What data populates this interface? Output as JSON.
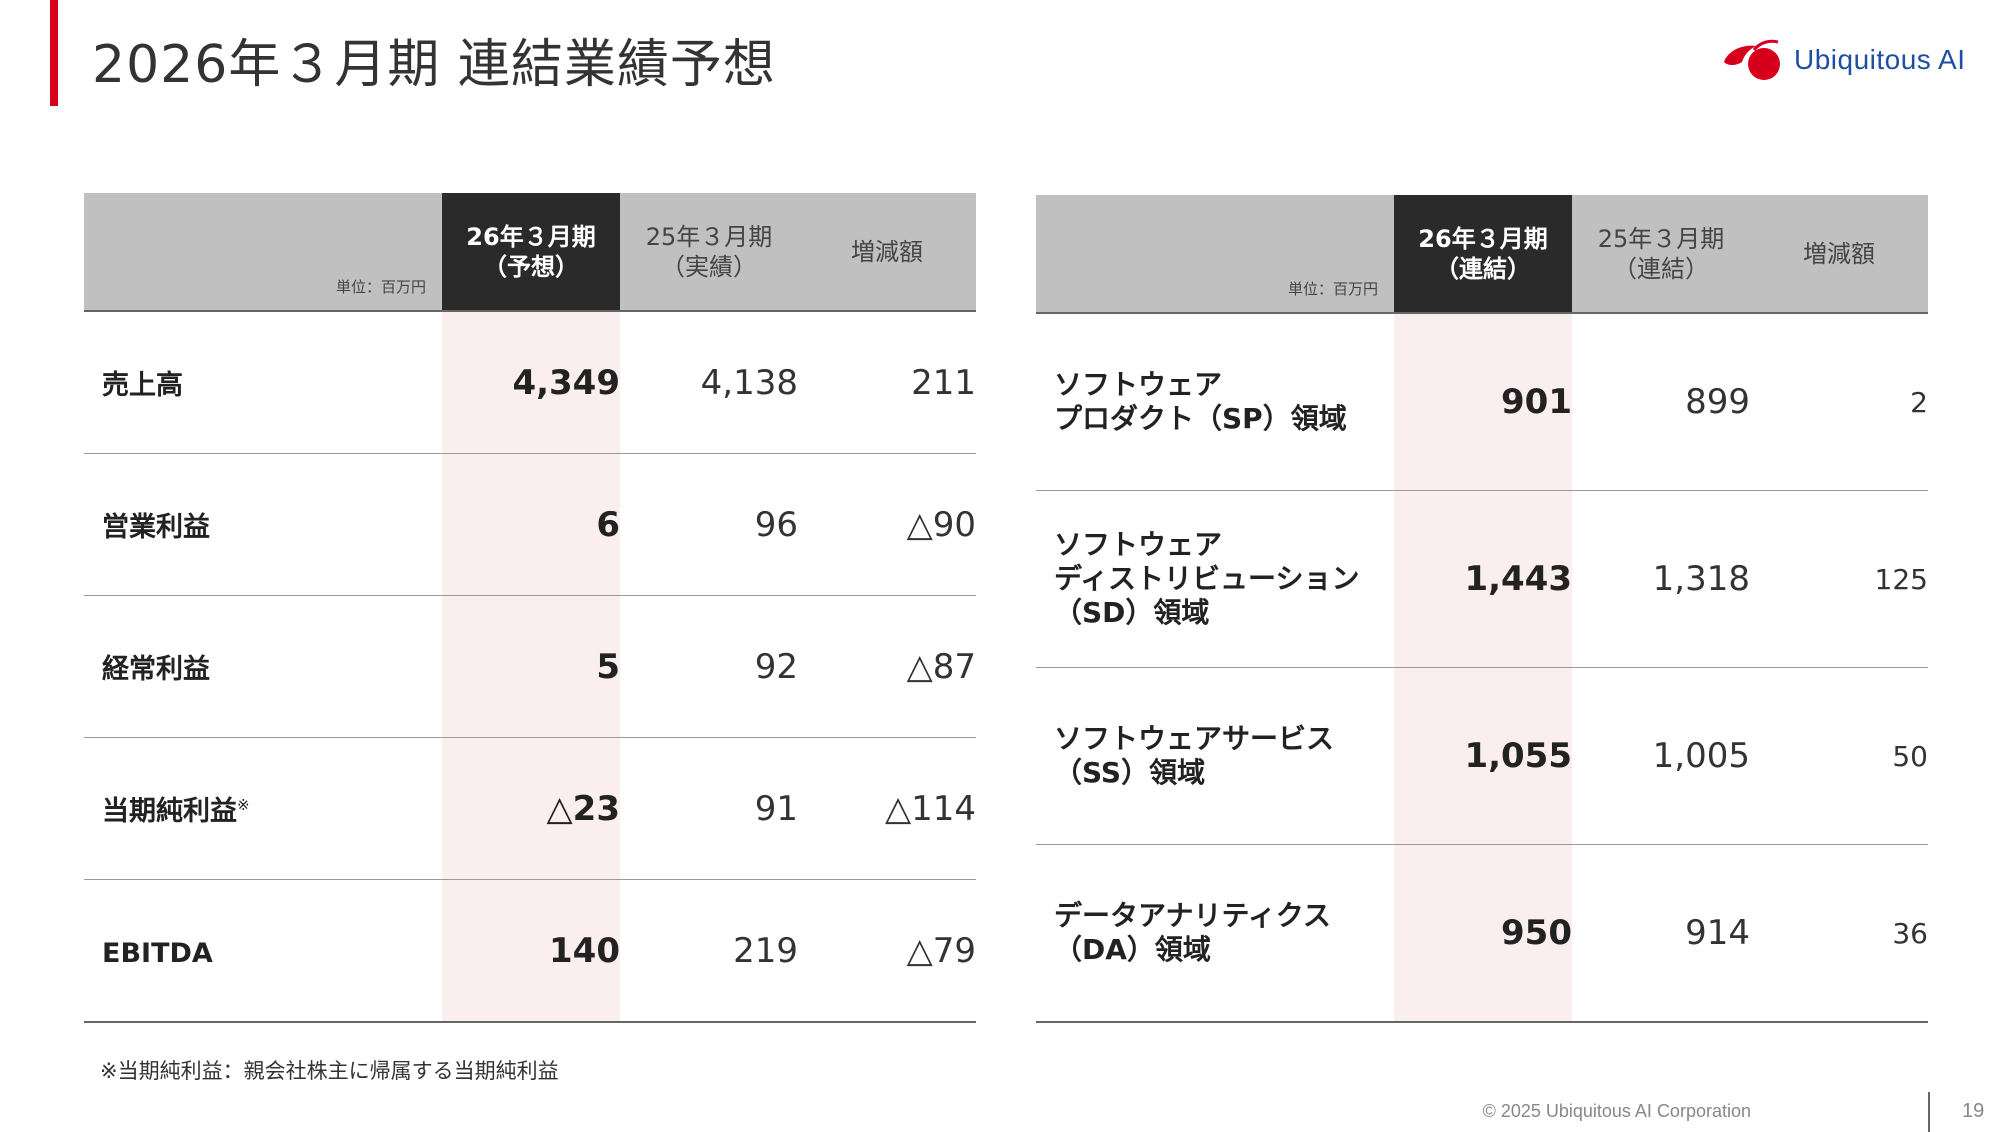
{
  "title": "2026年３月期 連結業績予想",
  "logo": {
    "text": "Ubiquitous AI"
  },
  "left_table": {
    "unit": "単位：百万円",
    "columns": [
      {
        "line1": "26年３月期",
        "line2": "（予想）"
      },
      {
        "line1": "25年３月期",
        "line2": "（実績）"
      },
      {
        "line1": "増減額",
        "line2": ""
      }
    ],
    "rows": [
      {
        "name": "売上高",
        "mark": "",
        "forecast": "4,349",
        "actual": "4,138",
        "change": "211"
      },
      {
        "name": "営業利益",
        "mark": "",
        "forecast": "6",
        "actual": "96",
        "change": "△90"
      },
      {
        "name": "経常利益",
        "mark": "",
        "forecast": "5",
        "actual": "92",
        "change": "△87"
      },
      {
        "name": "当期純利益",
        "mark": "※",
        "forecast": "△23",
        "actual": "91",
        "change": "△114"
      },
      {
        "name": "EBITDA",
        "mark": "",
        "forecast": "140",
        "actual": "219",
        "change": "△79"
      }
    ]
  },
  "right_table": {
    "unit": "単位：百万円",
    "columns": [
      {
        "line1": "26年３月期",
        "line2": "（連結）"
      },
      {
        "line1": "25年３月期",
        "line2": "（連結）"
      },
      {
        "line1": "増減額",
        "line2": ""
      }
    ],
    "rows": [
      {
        "name_lines": [
          "ソフトウェア",
          "プロダクト（SP）領域"
        ],
        "forecast": "901",
        "actual": "899",
        "change": "2"
      },
      {
        "name_lines": [
          "ソフトウェア",
          "ディストリビューション",
          "（SD）領域"
        ],
        "forecast": "1,443",
        "actual": "1,318",
        "change": "125"
      },
      {
        "name_lines": [
          "ソフトウェアサービス",
          "（SS）領域"
        ],
        "forecast": "1,055",
        "actual": "1,005",
        "change": "50"
      },
      {
        "name_lines": [
          "データアナリティクス",
          "（DA）領域"
        ],
        "forecast": "950",
        "actual": "914",
        "change": "36"
      }
    ]
  },
  "footnote": "※当期純利益：親会社株主に帰属する当期純利益",
  "footer": {
    "copyright": "© 2025 Ubiquitous AI Corporation",
    "page": "19"
  },
  "colors": {
    "accent": "#d6001c",
    "header_bg": "#c0c0c0",
    "header_current": "#2a2a2a",
    "current_col_bg": "#fbeeee",
    "logo_blue": "#1e4fa3"
  }
}
